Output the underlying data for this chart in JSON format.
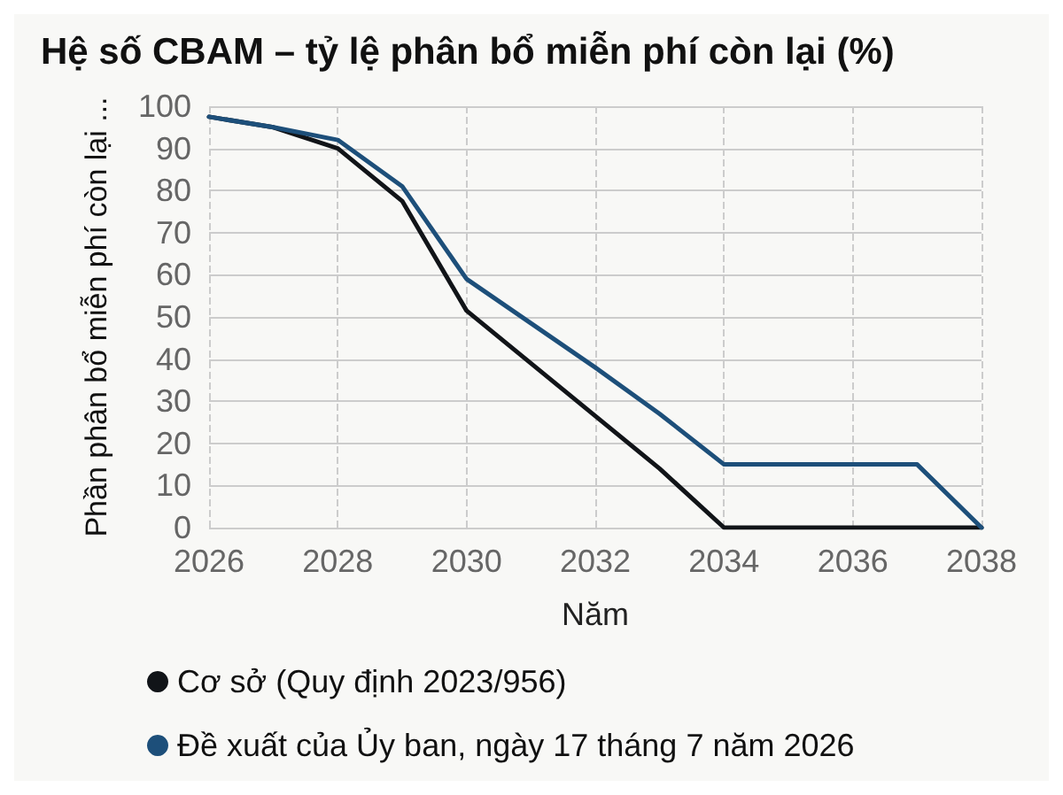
{
  "chart_data": {
    "type": "line",
    "title": "Hệ số CBAM – tỷ lệ phân bổ miễn phí còn lại (%)",
    "xlabel": "Năm",
    "ylabel": "Phần phân bổ miễn phí còn lại ...",
    "x": [
      2026,
      2027,
      2028,
      2029,
      2030,
      2031,
      2032,
      2033,
      2034,
      2035,
      2036,
      2037,
      2038
    ],
    "series": [
      {
        "name": "Cơ sở (Quy định 2023/956)",
        "color": "#111418",
        "values": [
          97.5,
          95,
          90,
          77.5,
          51.5,
          39,
          26.5,
          14,
          0,
          0,
          0,
          0,
          0
        ]
      },
      {
        "name": "Đề xuất của Ủy ban, ngày 17 tháng 7 năm 2026",
        "color": "#1d4f7a",
        "values": [
          97.5,
          95,
          92,
          81,
          59,
          48.5,
          38,
          27,
          15,
          15,
          15,
          15,
          0
        ]
      }
    ],
    "xlim": [
      2026,
      2038
    ],
    "xticks": [
      2026,
      2028,
      2030,
      2032,
      2034,
      2036,
      2038
    ],
    "ylim": [
      0,
      100
    ],
    "yticks": [
      0,
      10,
      20,
      30,
      40,
      50,
      60,
      70,
      80,
      90,
      100
    ],
    "grid": true,
    "legend": "bottom",
    "marker": "none",
    "line_style": "solid"
  }
}
